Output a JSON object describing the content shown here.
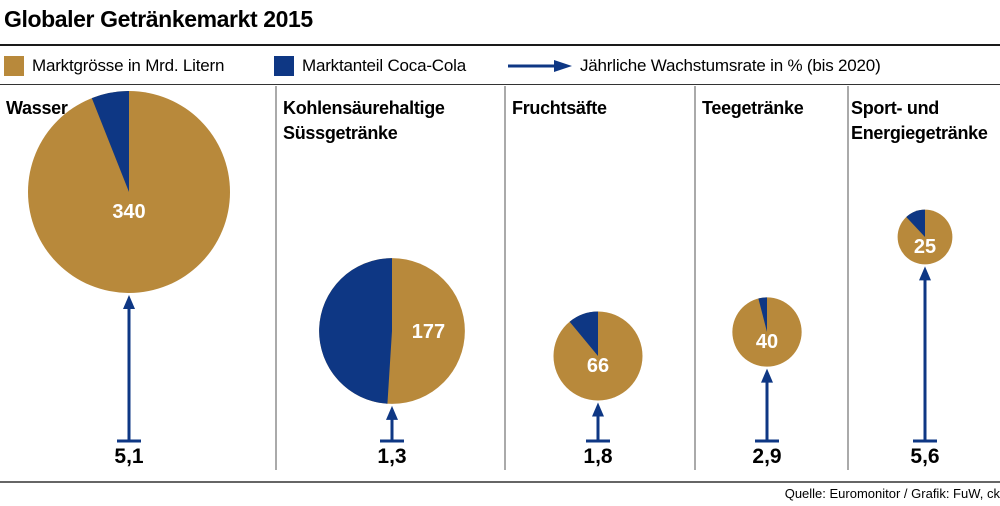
{
  "title": "Globaler Getränkemarkt 2015",
  "legend": {
    "market_size": "Marktgrösse in Mrd. Litern",
    "coca_cola_share": "Marktanteil Coca-Cola",
    "growth_rate": "Jährliche Wachstumsrate in % (bis 2020)"
  },
  "colors": {
    "gold": "#b8893b",
    "navy": "#0e3784",
    "rule": "#333333"
  },
  "source": "Quelle: Euromonitor / Grafik: FuW, ck",
  "chart_data": {
    "type": "pie",
    "title": "Globaler Getränkemarkt 2015",
    "units": {
      "market_size": "Mrd. Liter",
      "growth_rate": "% p.a. bis 2020"
    },
    "categories": [
      {
        "label": [
          "Wasser"
        ],
        "market_size": 340,
        "coca_cola_share_pct": 6,
        "growth_rate": 5.1,
        "market_size_label": "340",
        "growth_rate_label": "5,1"
      },
      {
        "label": [
          "Kohlensäurehaltige",
          "Süssgetränke"
        ],
        "market_size": 177,
        "coca_cola_share_pct": 49,
        "growth_rate": 1.3,
        "market_size_label": "177",
        "growth_rate_label": "1,3"
      },
      {
        "label": [
          "Fruchtsäfte"
        ],
        "market_size": 66,
        "coca_cola_share_pct": 11,
        "growth_rate": 1.8,
        "market_size_label": "66",
        "growth_rate_label": "1,8"
      },
      {
        "label": [
          "Teegetränke"
        ],
        "market_size": 40,
        "coca_cola_share_pct": 4,
        "growth_rate": 2.9,
        "market_size_label": "40",
        "growth_rate_label": "2,9"
      },
      {
        "label": [
          "Sport- und",
          "Energiegetränke"
        ],
        "market_size": 25,
        "coca_cola_share_pct": 12,
        "growth_rate": 5.6,
        "market_size_label": "25",
        "growth_rate_label": "5,6"
      }
    ]
  }
}
